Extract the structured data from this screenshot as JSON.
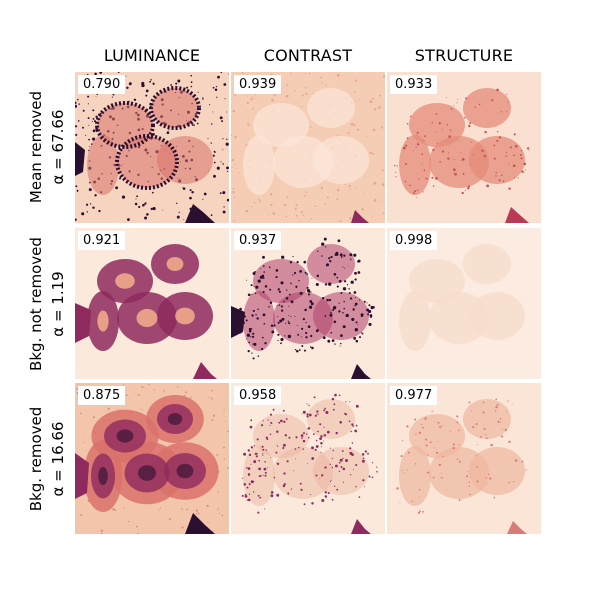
{
  "columns": [
    "LUMINANCE",
    "CONTRAST",
    "STRUCTURE"
  ],
  "rows": [
    {
      "title": "Mean removed",
      "alpha": "α = 67.66"
    },
    {
      "title": "Bkg. not removed",
      "alpha": "α = 1.19"
    },
    {
      "title": "Bkg. removed",
      "alpha": "α = 16.66"
    }
  ],
  "scores": [
    [
      "0.790",
      "0.939",
      "0.933"
    ],
    [
      "0.921",
      "0.937",
      "0.998"
    ],
    [
      "0.875",
      "0.958",
      "0.977"
    ]
  ],
  "panel_styles": [
    [
      "dark-dotted",
      "faint-texture",
      "medium-cells"
    ],
    [
      "strong-cells",
      "dark-speckle",
      "very-faint"
    ],
    [
      "heavy-cells",
      "fine-speckle",
      "light-cells"
    ]
  ],
  "colors": {
    "background": "#fbe9dc",
    "light": "#f3c3a8",
    "medium": "#d9716a",
    "dark": "#8e2a5e",
    "darkest": "#2b0f30"
  }
}
